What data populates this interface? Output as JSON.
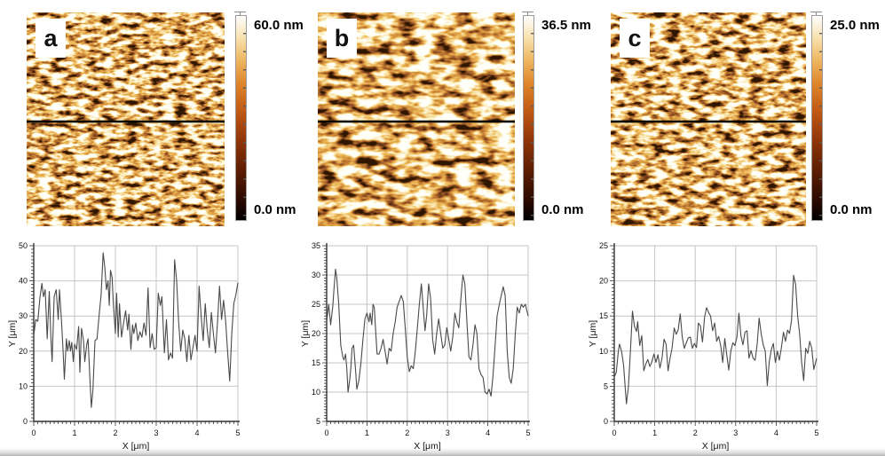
{
  "figure": {
    "panels": [
      {
        "label": "a",
        "scale_max": "60.0 nm",
        "scale_min": "0.0 nm"
      },
      {
        "label": "b",
        "scale_max": "36.5 nm",
        "scale_min": "0.0 nm"
      },
      {
        "label": "c",
        "scale_max": "25.0 nm",
        "scale_min": "0.0 nm"
      }
    ],
    "colors": {
      "colormap_top": "#ffffff",
      "colormap_mid": "#d2691e",
      "colormap_bottom": "#000000",
      "profile_marker_line": "#000000",
      "chart_line": "#4a4a4a",
      "grid": "#c4c4c4",
      "axis": "#333333"
    }
  },
  "chart_data": [
    {
      "type": "line",
      "panel": "a",
      "title": "",
      "xlabel": "X [μm]",
      "ylabel": "Y [μm]",
      "xlim": [
        0,
        5
      ],
      "ylim": [
        0,
        50
      ],
      "xticks": [
        0,
        1,
        2,
        3,
        4,
        5
      ],
      "yticks": [
        0,
        10,
        20,
        30,
        40,
        50
      ],
      "grid": true,
      "legend": false,
      "line_color": "#4a4a4a",
      "points": [
        [
          0,
          24.5
        ],
        [
          0.05,
          29
        ],
        [
          0.1,
          28.5
        ],
        [
          0.15,
          35
        ],
        [
          0.2,
          39.3
        ],
        [
          0.24,
          35.5
        ],
        [
          0.28,
          37.5
        ],
        [
          0.33,
          23.5
        ],
        [
          0.38,
          37
        ],
        [
          0.42,
          24
        ],
        [
          0.45,
          17
        ],
        [
          0.5,
          35.5
        ],
        [
          0.55,
          37.5
        ],
        [
          0.6,
          29
        ],
        [
          0.63,
          37.5
        ],
        [
          0.68,
          28.5
        ],
        [
          0.72,
          20
        ],
        [
          0.75,
          12
        ],
        [
          0.8,
          23.5
        ],
        [
          0.83,
          20
        ],
        [
          0.87,
          23
        ],
        [
          0.9,
          20
        ],
        [
          0.93,
          22.5
        ],
        [
          0.97,
          17
        ],
        [
          1,
          22
        ],
        [
          1.05,
          20.5
        ],
        [
          1.1,
          27
        ],
        [
          1.13,
          14
        ],
        [
          1.17,
          26.5
        ],
        [
          1.22,
          23
        ],
        [
          1.25,
          17
        ],
        [
          1.3,
          22
        ],
        [
          1.33,
          23.5
        ],
        [
          1.38,
          11
        ],
        [
          1.41,
          4
        ],
        [
          1.45,
          9
        ],
        [
          1.5,
          23
        ],
        [
          1.55,
          23.5
        ],
        [
          1.6,
          30
        ],
        [
          1.65,
          36
        ],
        [
          1.7,
          48
        ],
        [
          1.74,
          44
        ],
        [
          1.78,
          37.5
        ],
        [
          1.82,
          40
        ],
        [
          1.85,
          33
        ],
        [
          1.88,
          43
        ],
        [
          1.92,
          41
        ],
        [
          1.95,
          33.5
        ],
        [
          2,
          25
        ],
        [
          2.03,
          36.5
        ],
        [
          2.07,
          24
        ],
        [
          2.1,
          33.5
        ],
        [
          2.15,
          24
        ],
        [
          2.2,
          28
        ],
        [
          2.25,
          31.5
        ],
        [
          2.3,
          26
        ],
        [
          2.33,
          30.5
        ],
        [
          2.38,
          20.5
        ],
        [
          2.42,
          27.5
        ],
        [
          2.45,
          25
        ],
        [
          2.5,
          28
        ],
        [
          2.55,
          23
        ],
        [
          2.6,
          25.5
        ],
        [
          2.65,
          24
        ],
        [
          2.7,
          28
        ],
        [
          2.75,
          24.5
        ],
        [
          2.8,
          38
        ],
        [
          2.85,
          21
        ],
        [
          2.9,
          25
        ],
        [
          2.95,
          20.5
        ],
        [
          3,
          21
        ],
        [
          3.05,
          36.5
        ],
        [
          3.1,
          33
        ],
        [
          3.14,
          35.5
        ],
        [
          3.2,
          19.5
        ],
        [
          3.25,
          29
        ],
        [
          3.3,
          17.5
        ],
        [
          3.35,
          19.5
        ],
        [
          3.4,
          18
        ],
        [
          3.45,
          46
        ],
        [
          3.5,
          40
        ],
        [
          3.55,
          28
        ],
        [
          3.6,
          20
        ],
        [
          3.65,
          26
        ],
        [
          3.7,
          23.5
        ],
        [
          3.75,
          17
        ],
        [
          3.8,
          24.5
        ],
        [
          3.85,
          17.5
        ],
        [
          3.9,
          21
        ],
        [
          3.95,
          24.5
        ],
        [
          4,
          20
        ],
        [
          4.05,
          38.5
        ],
        [
          4.1,
          30
        ],
        [
          4.15,
          23
        ],
        [
          4.2,
          33.5
        ],
        [
          4.25,
          26
        ],
        [
          4.3,
          21
        ],
        [
          4.35,
          31
        ],
        [
          4.4,
          25
        ],
        [
          4.45,
          19.5
        ],
        [
          4.5,
          28
        ],
        [
          4.55,
          38.5
        ],
        [
          4.6,
          29
        ],
        [
          4.65,
          34.5
        ],
        [
          4.7,
          28.5
        ],
        [
          4.75,
          19.5
        ],
        [
          4.8,
          11.5
        ],
        [
          4.85,
          25
        ],
        [
          4.9,
          33.5
        ],
        [
          4.95,
          36
        ],
        [
          5,
          39.5
        ]
      ]
    },
    {
      "type": "line",
      "panel": "b",
      "title": "",
      "xlabel": "X [μm]",
      "ylabel": "Y [μm]",
      "xlim": [
        0,
        5
      ],
      "ylim": [
        5,
        35
      ],
      "xticks": [
        0,
        1,
        2,
        3,
        4,
        5
      ],
      "yticks": [
        5,
        10,
        15,
        20,
        25,
        30,
        35
      ],
      "grid": true,
      "legend": false,
      "line_color": "#4a4a4a",
      "points": [
        [
          0,
          22
        ],
        [
          0.05,
          25
        ],
        [
          0.08,
          23
        ],
        [
          0.1,
          21.5
        ],
        [
          0.15,
          24.5
        ],
        [
          0.18,
          27.5
        ],
        [
          0.22,
          31
        ],
        [
          0.25,
          29.5
        ],
        [
          0.3,
          25
        ],
        [
          0.35,
          18
        ],
        [
          0.4,
          16
        ],
        [
          0.43,
          15.5
        ],
        [
          0.47,
          16.5
        ],
        [
          0.5,
          14
        ],
        [
          0.53,
          10
        ],
        [
          0.57,
          12
        ],
        [
          0.6,
          14
        ],
        [
          0.63,
          17.5
        ],
        [
          0.67,
          18
        ],
        [
          0.72,
          13.5
        ],
        [
          0.75,
          10.5
        ],
        [
          0.8,
          12
        ],
        [
          0.85,
          15
        ],
        [
          0.9,
          19
        ],
        [
          0.95,
          22.5
        ],
        [
          1,
          23.5
        ],
        [
          1.05,
          22
        ],
        [
          1.08,
          23.5
        ],
        [
          1.12,
          21.5
        ],
        [
          1.15,
          25
        ],
        [
          1.18,
          24.5
        ],
        [
          1.25,
          16.5
        ],
        [
          1.3,
          16.5
        ],
        [
          1.35,
          17.5
        ],
        [
          1.4,
          19
        ],
        [
          1.45,
          17
        ],
        [
          1.5,
          14.8
        ],
        [
          1.55,
          17.5
        ],
        [
          1.6,
          17
        ],
        [
          1.65,
          20
        ],
        [
          1.7,
          22
        ],
        [
          1.75,
          24.5
        ],
        [
          1.8,
          25.5
        ],
        [
          1.85,
          26.5
        ],
        [
          1.9,
          25.5
        ],
        [
          1.95,
          21
        ],
        [
          2,
          16
        ],
        [
          2.05,
          13.5
        ],
        [
          2.1,
          14.5
        ],
        [
          2.15,
          14
        ],
        [
          2.2,
          17
        ],
        [
          2.25,
          21
        ],
        [
          2.3,
          25
        ],
        [
          2.35,
          28.5
        ],
        [
          2.4,
          24
        ],
        [
          2.44,
          20.5
        ],
        [
          2.48,
          23
        ],
        [
          2.53,
          28.5
        ],
        [
          2.58,
          26
        ],
        [
          2.63,
          19
        ],
        [
          2.68,
          16.5
        ],
        [
          2.73,
          20
        ],
        [
          2.78,
          22.5
        ],
        [
          2.83,
          20
        ],
        [
          2.88,
          17.5
        ],
        [
          2.93,
          18
        ],
        [
          2.98,
          21
        ],
        [
          3.03,
          19
        ],
        [
          3.08,
          17
        ],
        [
          3.13,
          19.5
        ],
        [
          3.18,
          23.5
        ],
        [
          3.23,
          22
        ],
        [
          3.28,
          21
        ],
        [
          3.33,
          26
        ],
        [
          3.38,
          30
        ],
        [
          3.43,
          28.5
        ],
        [
          3.48,
          22
        ],
        [
          3.53,
          16
        ],
        [
          3.58,
          15.5
        ],
        [
          3.63,
          18
        ],
        [
          3.68,
          21.5
        ],
        [
          3.73,
          20
        ],
        [
          3.78,
          14
        ],
        [
          3.83,
          13
        ],
        [
          3.88,
          12.5
        ],
        [
          3.93,
          10
        ],
        [
          3.98,
          9.7
        ],
        [
          4.03,
          10.5
        ],
        [
          4.08,
          9.3
        ],
        [
          4.13,
          13
        ],
        [
          4.18,
          18
        ],
        [
          4.23,
          23
        ],
        [
          4.3,
          25.5
        ],
        [
          4.38,
          28
        ],
        [
          4.43,
          26.5
        ],
        [
          4.48,
          17
        ],
        [
          4.53,
          12.5
        ],
        [
          4.58,
          11.5
        ],
        [
          4.63,
          14
        ],
        [
          4.68,
          20
        ],
        [
          4.73,
          24.5
        ],
        [
          4.78,
          23.5
        ],
        [
          4.83,
          25
        ],
        [
          4.88,
          24.5
        ],
        [
          4.93,
          25
        ],
        [
          5,
          23
        ]
      ]
    },
    {
      "type": "line",
      "panel": "c",
      "title": "",
      "xlabel": "X [μm]",
      "ylabel": "Y [μm]",
      "xlim": [
        0,
        5
      ],
      "ylim": [
        0,
        25
      ],
      "xticks": [
        0,
        1,
        2,
        3,
        4,
        5
      ],
      "yticks": [
        0,
        5,
        10,
        15,
        20,
        25
      ],
      "grid": true,
      "legend": false,
      "line_color": "#4a4a4a",
      "points": [
        [
          0,
          6.3
        ],
        [
          0.05,
          7
        ],
        [
          0.1,
          10
        ],
        [
          0.13,
          11
        ],
        [
          0.18,
          10
        ],
        [
          0.23,
          8
        ],
        [
          0.28,
          4
        ],
        [
          0.3,
          2.5
        ],
        [
          0.35,
          5
        ],
        [
          0.4,
          10
        ],
        [
          0.45,
          15.7
        ],
        [
          0.5,
          13.5
        ],
        [
          0.55,
          12.8
        ],
        [
          0.58,
          14.2
        ],
        [
          0.63,
          10.8
        ],
        [
          0.68,
          12.2
        ],
        [
          0.73,
          7.2
        ],
        [
          0.78,
          8.2
        ],
        [
          0.83,
          8.8
        ],
        [
          0.88,
          7.8
        ],
        [
          0.93,
          8.5
        ],
        [
          0.98,
          9.6
        ],
        [
          1.03,
          8.4
        ],
        [
          1.08,
          9.5
        ],
        [
          1.13,
          7.6
        ],
        [
          1.18,
          9
        ],
        [
          1.23,
          11.7
        ],
        [
          1.28,
          11
        ],
        [
          1.33,
          7.2
        ],
        [
          1.38,
          9
        ],
        [
          1.43,
          10.5
        ],
        [
          1.48,
          13.3
        ],
        [
          1.53,
          12.4
        ],
        [
          1.58,
          13
        ],
        [
          1.63,
          15.3
        ],
        [
          1.68,
          12
        ],
        [
          1.73,
          10.4
        ],
        [
          1.78,
          11.2
        ],
        [
          1.83,
          11.9
        ],
        [
          1.88,
          12
        ],
        [
          1.93,
          10.4
        ],
        [
          1.98,
          11.1
        ],
        [
          2.03,
          10.5
        ],
        [
          2.08,
          14
        ],
        [
          2.13,
          13.6
        ],
        [
          2.18,
          11.3
        ],
        [
          2.23,
          14.8
        ],
        [
          2.28,
          16.2
        ],
        [
          2.33,
          15.5
        ],
        [
          2.38,
          15
        ],
        [
          2.43,
          12.9
        ],
        [
          2.48,
          14
        ],
        [
          2.53,
          11.4
        ],
        [
          2.58,
          12.1
        ],
        [
          2.63,
          10.8
        ],
        [
          2.68,
          8.4
        ],
        [
          2.73,
          11.8
        ],
        [
          2.78,
          9.4
        ],
        [
          2.83,
          7.3
        ],
        [
          2.88,
          10
        ],
        [
          2.93,
          11.2
        ],
        [
          2.98,
          10.8
        ],
        [
          3.03,
          12
        ],
        [
          3.08,
          15.4
        ],
        [
          3.13,
          12.2
        ],
        [
          3.18,
          10.9
        ],
        [
          3.23,
          12.7
        ],
        [
          3.28,
          12.9
        ],
        [
          3.33,
          9
        ],
        [
          3.38,
          10.1
        ],
        [
          3.43,
          9
        ],
        [
          3.48,
          8.7
        ],
        [
          3.53,
          11
        ],
        [
          3.58,
          14.7
        ],
        [
          3.63,
          12.5
        ],
        [
          3.68,
          10.9
        ],
        [
          3.73,
          10
        ],
        [
          3.78,
          5.1
        ],
        [
          3.83,
          8.5
        ],
        [
          3.88,
          10.2
        ],
        [
          3.93,
          11.1
        ],
        [
          3.98,
          8.4
        ],
        [
          4.03,
          10
        ],
        [
          4.08,
          8.7
        ],
        [
          4.13,
          10.5
        ],
        [
          4.18,
          12.7
        ],
        [
          4.23,
          11.4
        ],
        [
          4.28,
          13
        ],
        [
          4.33,
          12.5
        ],
        [
          4.38,
          14.4
        ],
        [
          4.43,
          20.8
        ],
        [
          4.48,
          19.5
        ],
        [
          4.53,
          15
        ],
        [
          4.58,
          12.5
        ],
        [
          4.63,
          8.4
        ],
        [
          4.68,
          5.8
        ],
        [
          4.73,
          10.4
        ],
        [
          4.78,
          9.7
        ],
        [
          4.83,
          11.4
        ],
        [
          4.88,
          10.4
        ],
        [
          4.93,
          7.4
        ],
        [
          5,
          9
        ]
      ]
    }
  ]
}
